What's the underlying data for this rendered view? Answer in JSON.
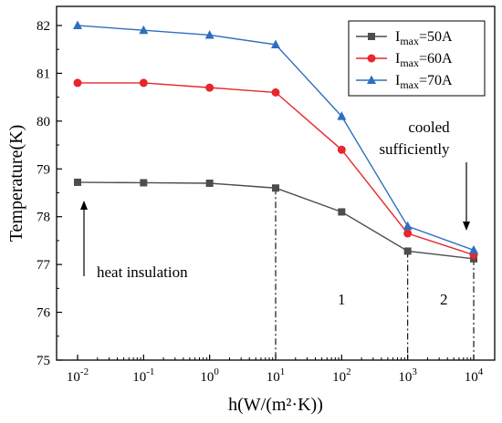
{
  "chart_data": {
    "type": "line",
    "xlabel": "h(W/(m²·K))",
    "ylabel": "Temperature(K)",
    "x_scale": "log",
    "xlim": [
      0.01,
      10000
    ],
    "ylim": [
      75,
      82.4
    ],
    "x_tick_values": [
      0.01,
      0.1,
      1,
      10,
      100,
      1000,
      10000
    ],
    "x_ticks": [
      {
        "base": "10",
        "exp": "-2"
      },
      {
        "base": "10",
        "exp": "-1"
      },
      {
        "base": "10",
        "exp": "0"
      },
      {
        "base": "10",
        "exp": "1"
      },
      {
        "base": "10",
        "exp": "2"
      },
      {
        "base": "10",
        "exp": "3"
      },
      {
        "base": "10",
        "exp": "4"
      }
    ],
    "y_ticks": [
      "75",
      "76",
      "77",
      "78",
      "79",
      "80",
      "81",
      "82"
    ],
    "y_tick_values": [
      75,
      76,
      77,
      78,
      79,
      80,
      81,
      82
    ],
    "x": [
      0.01,
      0.1,
      1,
      10,
      100,
      1000,
      10000
    ],
    "series": [
      {
        "name_main": "I",
        "name_sub": "max",
        "name_rest": "=50A",
        "marker": "square",
        "color": "#4d4d4d",
        "values": [
          78.72,
          78.71,
          78.7,
          78.6,
          78.1,
          77.28,
          77.12
        ]
      },
      {
        "name_main": "I",
        "name_sub": "max",
        "name_rest": "=60A",
        "marker": "circle",
        "color": "#e8262b",
        "values": [
          80.8,
          80.8,
          80.7,
          80.6,
          79.4,
          77.65,
          77.2
        ]
      },
      {
        "name_main": "I",
        "name_sub": "max",
        "name_rest": "=70A",
        "marker": "triangle",
        "color": "#2f6fbf",
        "values": [
          82.0,
          81.9,
          81.8,
          81.6,
          80.1,
          77.8,
          77.3
        ]
      }
    ],
    "reference_lines_x": [
      10,
      1000,
      10000
    ],
    "legend_position": "top-right",
    "grid": false,
    "annotations": {
      "heat_insulation": "heat insulation",
      "cooled_line1": "cooled",
      "cooled_line2": "sufficiently",
      "region1": "1",
      "region2": "2"
    }
  }
}
